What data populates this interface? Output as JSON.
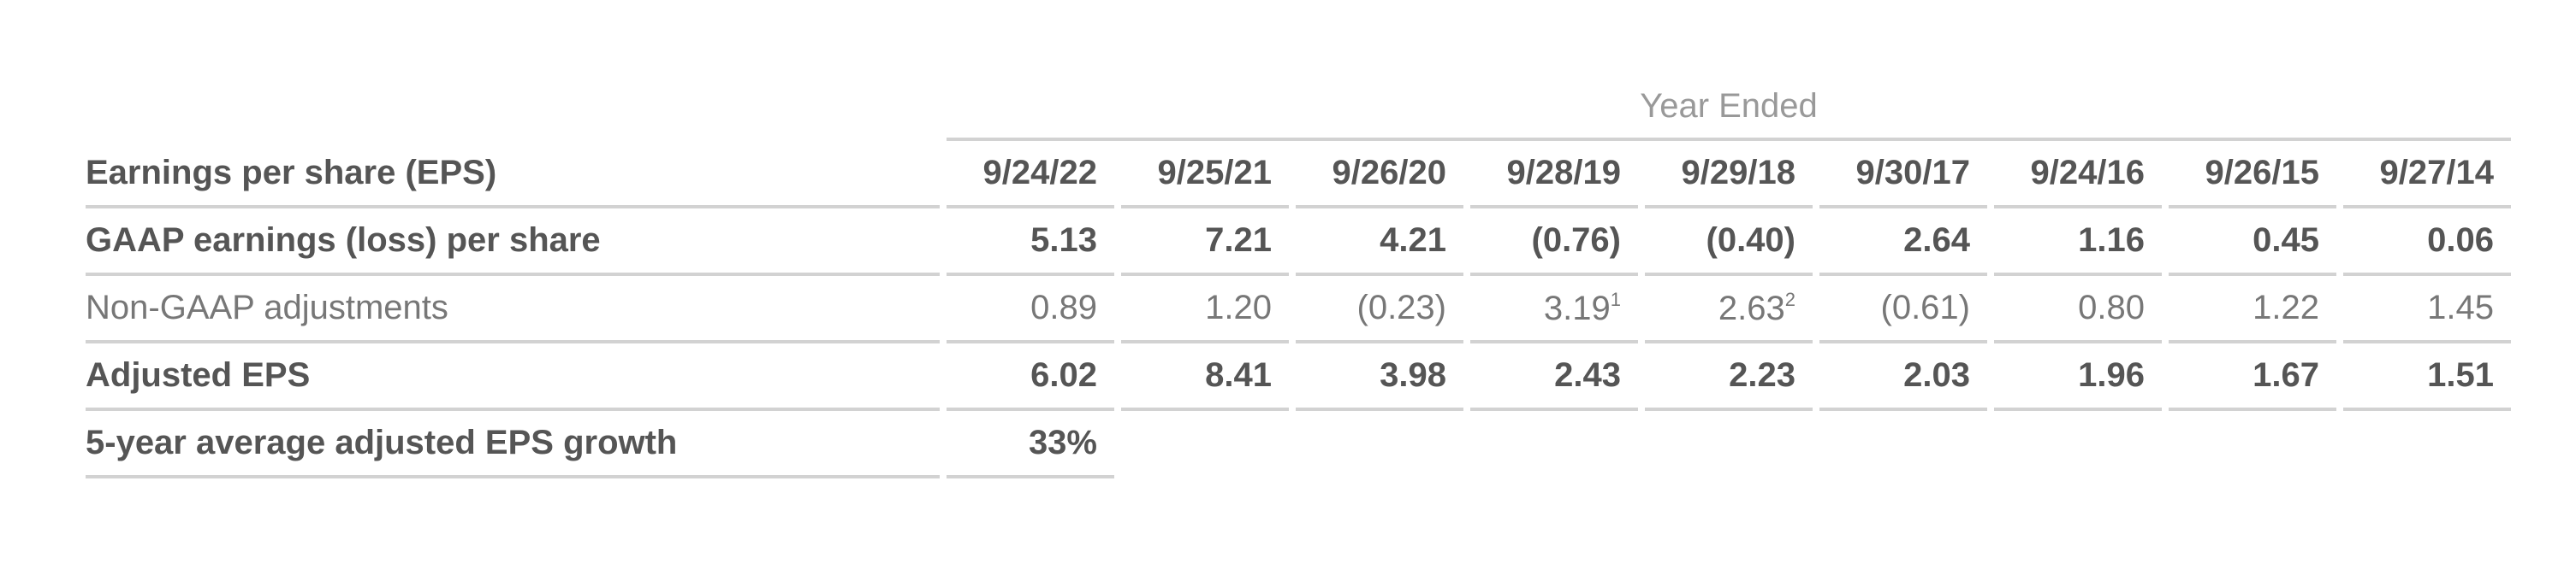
{
  "header": {
    "group_label": "Year Ended"
  },
  "table": {
    "columns": [
      "Earnings per share (EPS)",
      "9/24/22",
      "9/25/21",
      "9/26/20",
      "9/28/19",
      "9/29/18",
      "9/30/17",
      "9/24/16",
      "9/26/15",
      "9/27/14"
    ],
    "rows": [
      [
        "GAAP earnings (loss) per share",
        "5.13",
        "7.21",
        "4.21",
        "(0.76)",
        "(0.40)",
        "2.64",
        "1.16",
        "0.45",
        "0.06"
      ],
      [
        "Non-GAAP adjustments",
        "0.89",
        "1.20",
        "(0.23)",
        {
          "text": "3.19",
          "note": "1"
        },
        {
          "text": "2.63",
          "note": "2"
        },
        "(0.61)",
        "0.80",
        "1.22",
        "1.45"
      ],
      [
        "Adjusted EPS",
        "6.02",
        "8.41",
        "3.98",
        "2.43",
        "2.23",
        "2.03",
        "1.96",
        "1.67",
        "1.51"
      ],
      [
        "5-year average adjusted EPS growth",
        "33%"
      ]
    ]
  }
}
